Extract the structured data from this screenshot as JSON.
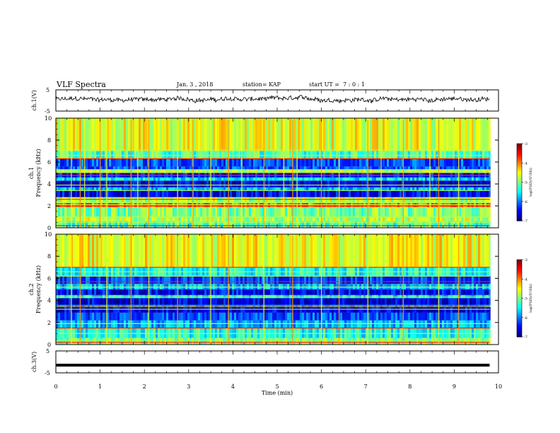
{
  "header": {
    "title": "VLF Spectra",
    "date": "Jan. 3 , 2018",
    "station": "station= KAP",
    "start": "start UT =  7 : 0 : 1"
  },
  "chart_data": [
    {
      "type": "line",
      "panel": "ch1-waveform",
      "ylabel": "ch.1(V)",
      "ylim": [
        -5,
        5
      ],
      "yticks": [
        "5",
        "-5"
      ],
      "xlim": [
        0,
        10
      ],
      "trace_mean_v": 0.5,
      "trace_amplitude_v": 2
    },
    {
      "type": "heatmap",
      "panel": "ch1-spectrogram",
      "ylabel_line1": "ch.1",
      "ylabel_line2": "Frequency (kHz)",
      "ylim": [
        0,
        10
      ],
      "yticks": [
        "0",
        "2",
        "4",
        "6",
        "8",
        "10"
      ],
      "xlim": [
        0,
        10
      ],
      "data_end_min": 9.8,
      "colorbar": {
        "label": "log(PSD)(V²/Hz)",
        "ticks": [
          "-3",
          "-4",
          "-5",
          "-6",
          "-7"
        ],
        "range": [
          -7,
          -3
        ]
      },
      "bands": [
        {
          "f0": 0.0,
          "f1": 0.6,
          "level": 0.45
        },
        {
          "f0": 0.6,
          "f1": 1.0,
          "level": 0.55
        },
        {
          "f0": 1.0,
          "f1": 1.9,
          "level": 0.5
        },
        {
          "f0": 1.9,
          "f1": 2.3,
          "level": 0.78
        },
        {
          "f0": 2.3,
          "f1": 2.8,
          "level": 0.55
        },
        {
          "f0": 2.8,
          "f1": 3.4,
          "level": 0.1
        },
        {
          "f0": 3.4,
          "f1": 3.7,
          "level": 0.3
        },
        {
          "f0": 3.7,
          "f1": 4.3,
          "level": 0.08
        },
        {
          "f0": 4.3,
          "f1": 4.6,
          "level": 0.35
        },
        {
          "f0": 4.6,
          "f1": 5.0,
          "level": 0.12
        },
        {
          "f0": 5.0,
          "f1": 5.3,
          "level": 0.55
        },
        {
          "f0": 5.3,
          "f1": 5.6,
          "level": 0.2
        },
        {
          "f0": 5.6,
          "f1": 6.3,
          "level": 0.2
        },
        {
          "f0": 6.3,
          "f1": 7.0,
          "level": 0.45
        },
        {
          "f0": 7.0,
          "f1": 10.0,
          "level": 0.6
        }
      ],
      "lines_khz": [
        0.2,
        0.5,
        1.0,
        2.0,
        2.1,
        2.3,
        2.6,
        3.4,
        3.9,
        4.8,
        5.1,
        5.3,
        6.3,
        6.6,
        7.1
      ],
      "bursts_min": [
        0.35,
        0.55,
        0.65,
        1.0,
        1.15,
        1.7,
        1.85,
        2.1,
        2.75,
        3.1,
        3.5,
        3.9,
        4.2,
        4.7,
        5.15,
        5.35,
        5.45,
        6.0,
        6.4,
        7.05,
        7.35,
        7.85,
        8.45,
        8.65,
        9.1
      ]
    },
    {
      "type": "heatmap",
      "panel": "ch2-spectrogram",
      "ylabel_line1": "ch.2",
      "ylabel_line2": "Frequency (kHz)",
      "ylim": [
        0,
        10
      ],
      "yticks": [
        "0",
        "2",
        "4",
        "6",
        "8",
        "10"
      ],
      "xlim": [
        0,
        10
      ],
      "data_end_min": 9.8,
      "colorbar": {
        "label": "log(PSD)(V²/Hz)",
        "ticks": [
          "-3",
          "-4",
          "-5",
          "-6",
          "-7"
        ],
        "range": [
          -7,
          -3
        ]
      },
      "bands": [
        {
          "f0": 0.0,
          "f1": 0.6,
          "level": 0.5
        },
        {
          "f0": 0.6,
          "f1": 1.5,
          "level": 0.4
        },
        {
          "f0": 1.5,
          "f1": 2.2,
          "level": 0.3
        },
        {
          "f0": 2.2,
          "f1": 2.9,
          "level": 0.2
        },
        {
          "f0": 2.9,
          "f1": 3.4,
          "level": 0.08
        },
        {
          "f0": 3.4,
          "f1": 3.6,
          "level": 0.35
        },
        {
          "f0": 3.6,
          "f1": 4.2,
          "level": 0.08
        },
        {
          "f0": 4.2,
          "f1": 4.5,
          "level": 0.35
        },
        {
          "f0": 4.5,
          "f1": 5.0,
          "level": 0.12
        },
        {
          "f0": 5.0,
          "f1": 5.5,
          "level": 0.3
        },
        {
          "f0": 5.5,
          "f1": 6.2,
          "level": 0.18
        },
        {
          "f0": 6.2,
          "f1": 7.0,
          "level": 0.4
        },
        {
          "f0": 7.0,
          "f1": 10.0,
          "level": 0.62
        }
      ],
      "lines_khz": [
        0.2,
        0.4,
        1.0,
        1.5,
        1.9,
        3.2,
        3.5,
        4.3,
        5.2,
        5.7,
        6.2,
        6.6,
        7.0
      ],
      "bursts_min": [
        0.35,
        0.55,
        1.15,
        1.7,
        2.1,
        2.75,
        3.5,
        3.9,
        4.7,
        5.35,
        6.0,
        6.4,
        7.05,
        7.85,
        8.65,
        9.1
      ]
    },
    {
      "type": "line",
      "panel": "ch3-waveform",
      "ylabel": "ch.3(V)",
      "ylim": [
        -5,
        5
      ],
      "yticks": [
        "5",
        "-5"
      ],
      "xlim": [
        0,
        10
      ],
      "trace_mean_v": -1.5,
      "xlabel": "Time (min)",
      "xticks": [
        "0",
        "1",
        "2",
        "3",
        "4",
        "5",
        "6",
        "7",
        "8",
        "9",
        "10"
      ]
    }
  ]
}
